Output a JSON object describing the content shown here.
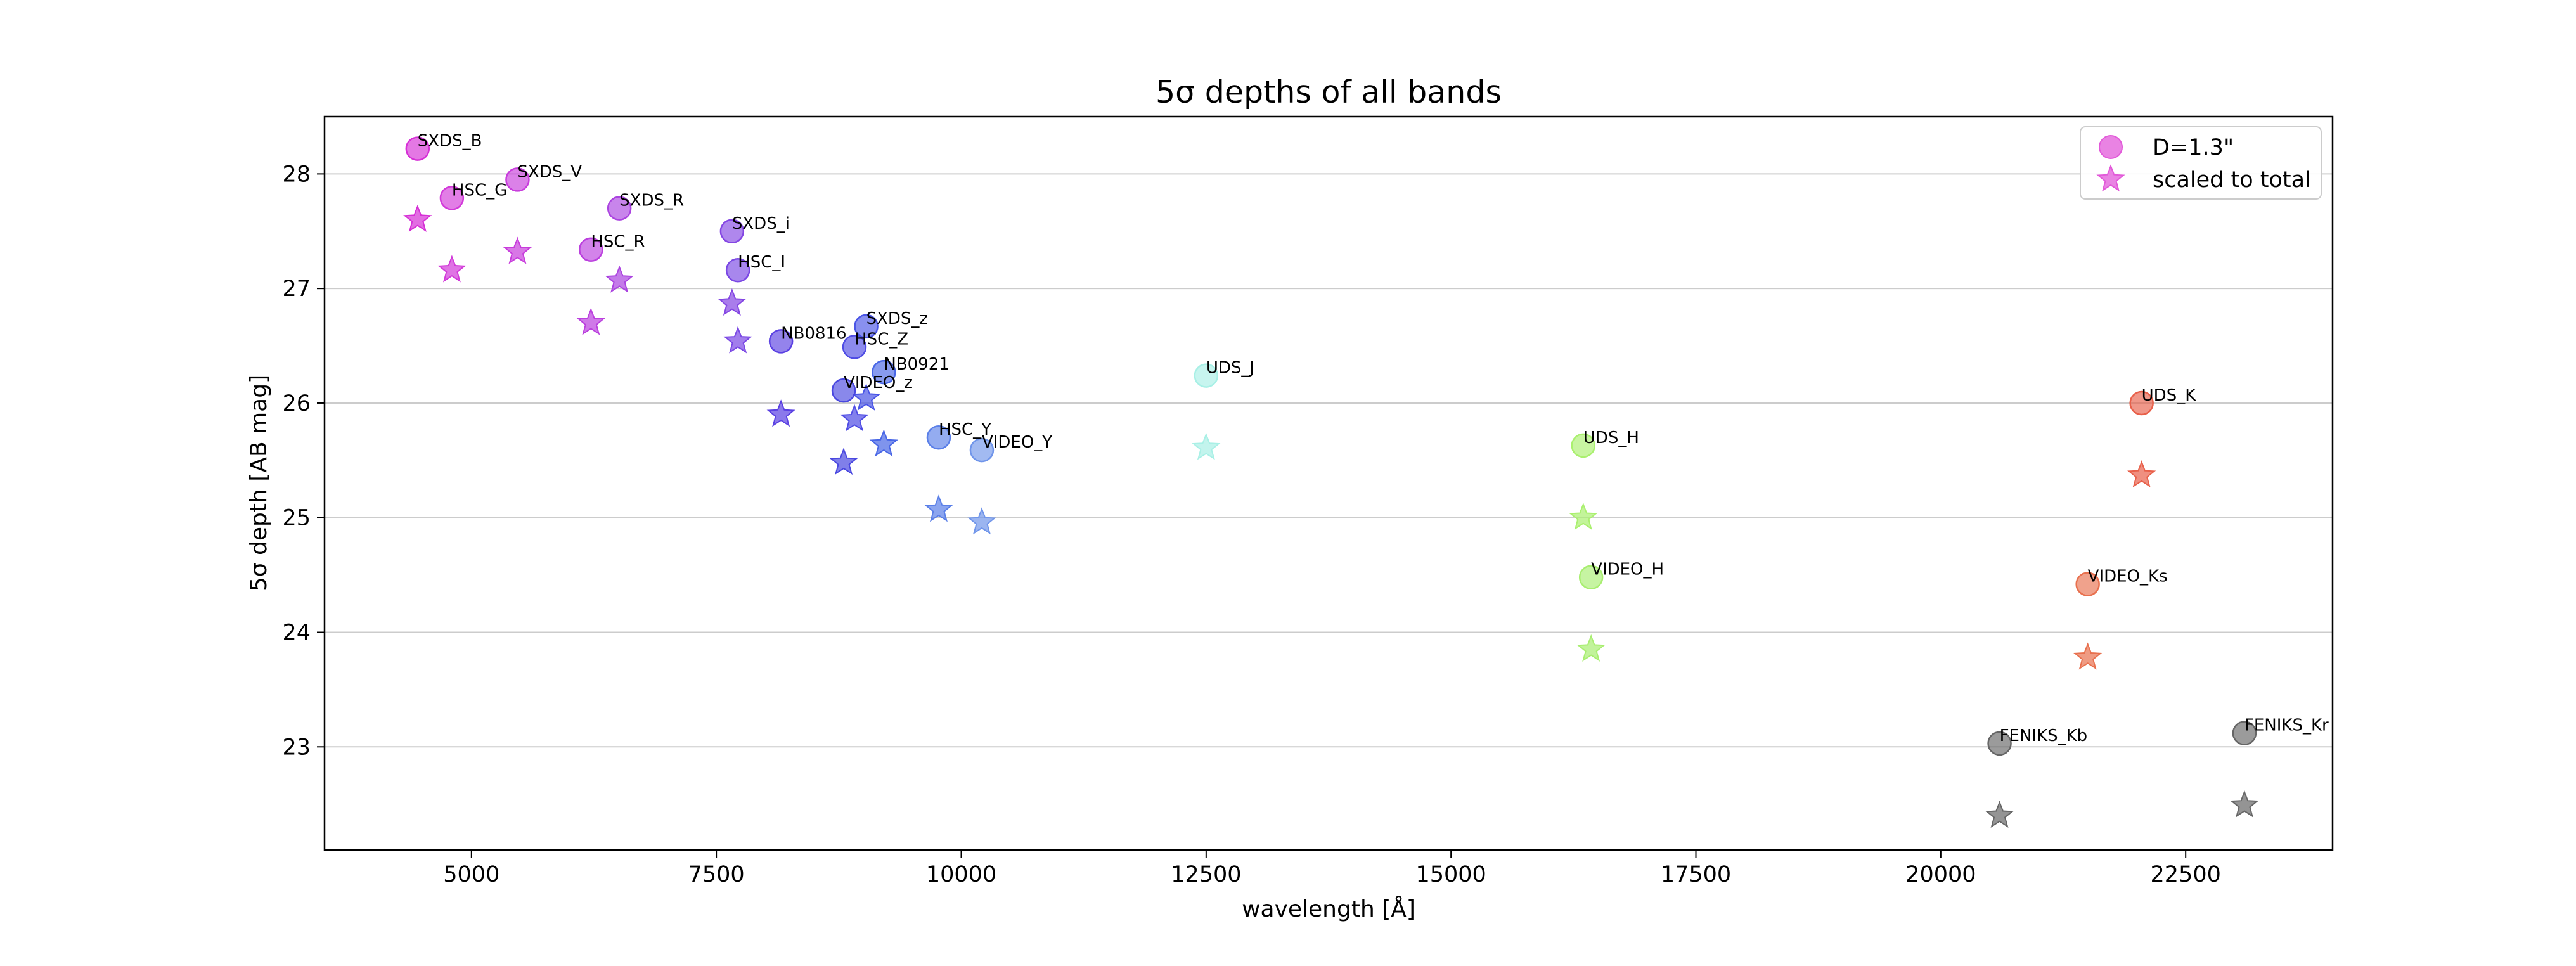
{
  "chart_data": {
    "type": "scatter",
    "title": "5σ depths of all bands",
    "xlabel": "wavelength [Å]",
    "ylabel": "5σ depth [AB mag]",
    "xlim": [
      3500,
      24000
    ],
    "ylim": [
      22.1,
      28.5
    ],
    "xticks": [
      5000,
      7500,
      10000,
      12500,
      15000,
      17500,
      20000,
      22500
    ],
    "yticks": [
      23,
      24,
      25,
      26,
      27,
      28
    ],
    "grid": "horizontal",
    "legend_position": "top-right",
    "series": [
      {
        "name": "D=1.3\"",
        "marker": "circle"
      },
      {
        "name": "scaled to total",
        "marker": "star"
      }
    ],
    "points": [
      {
        "band": "SXDS_B",
        "x": 4450,
        "aperture": 28.22,
        "total": 27.6,
        "color": "#d62fd6"
      },
      {
        "band": "HSC_G",
        "x": 4800,
        "aperture": 27.79,
        "total": 27.16,
        "color": "#d239d9"
      },
      {
        "band": "SXDS_V",
        "x": 5470,
        "aperture": 27.95,
        "total": 27.32,
        "color": "#c83ddc"
      },
      {
        "band": "HSC_R",
        "x": 6220,
        "aperture": 27.34,
        "total": 26.7,
        "color": "#bb40de"
      },
      {
        "band": "SXDS_R",
        "x": 6510,
        "aperture": 27.7,
        "total": 27.07,
        "color": "#ab43e0"
      },
      {
        "band": "SXDS_i",
        "x": 7660,
        "aperture": 27.5,
        "total": 26.87,
        "color": "#8446e3"
      },
      {
        "band": "HSC_I",
        "x": 7720,
        "aperture": 27.16,
        "total": 26.54,
        "color": "#7a47e4"
      },
      {
        "band": "NB0816",
        "x": 8160,
        "aperture": 26.54,
        "total": 25.9,
        "color": "#5a40e2"
      },
      {
        "band": "HSC_Z",
        "x": 8910,
        "aperture": 26.49,
        "total": 25.86,
        "color": "#4f4ce4"
      },
      {
        "band": "SXDS_z",
        "x": 9030,
        "aperture": 26.67,
        "total": 26.04,
        "color": "#4a55e6"
      },
      {
        "band": "VIDEO_z",
        "x": 8800,
        "aperture": 26.11,
        "total": 25.48,
        "color": "#4a48e0"
      },
      {
        "band": "NB0921",
        "x": 9210,
        "aperture": 26.27,
        "total": 25.64,
        "color": "#4866e6"
      },
      {
        "band": "HSC_Y",
        "x": 9770,
        "aperture": 25.7,
        "total": 25.07,
        "color": "#5a7fe8"
      },
      {
        "band": "VIDEO_Y",
        "x": 10210,
        "aperture": 25.59,
        "total": 24.96,
        "color": "#7095ea"
      },
      {
        "band": "UDS_J",
        "x": 12500,
        "aperture": 26.24,
        "total": 25.61,
        "color": "#a9f0e6"
      },
      {
        "band": "UDS_H",
        "x": 16350,
        "aperture": 25.63,
        "total": 25.0,
        "color": "#aaf06f"
      },
      {
        "band": "VIDEO_H",
        "x": 16430,
        "aperture": 24.48,
        "total": 23.85,
        "color": "#a8ee70"
      },
      {
        "band": "VIDEO_Ks",
        "x": 21500,
        "aperture": 24.42,
        "total": 23.78,
        "color": "#e8704e"
      },
      {
        "band": "UDS_K",
        "x": 22050,
        "aperture": 26.0,
        "total": 25.37,
        "color": "#e8604a"
      },
      {
        "band": "FENIKS_Kb",
        "x": 20600,
        "aperture": 23.03,
        "total": 22.4,
        "color": "#666666"
      },
      {
        "band": "FENIKS_Kr",
        "x": 23100,
        "aperture": 23.12,
        "total": 22.49,
        "color": "#666666"
      }
    ]
  },
  "legend": {
    "aperture_label": "D=1.3\"",
    "total_label": "scaled to total",
    "marker_color": "#e25ad9"
  }
}
